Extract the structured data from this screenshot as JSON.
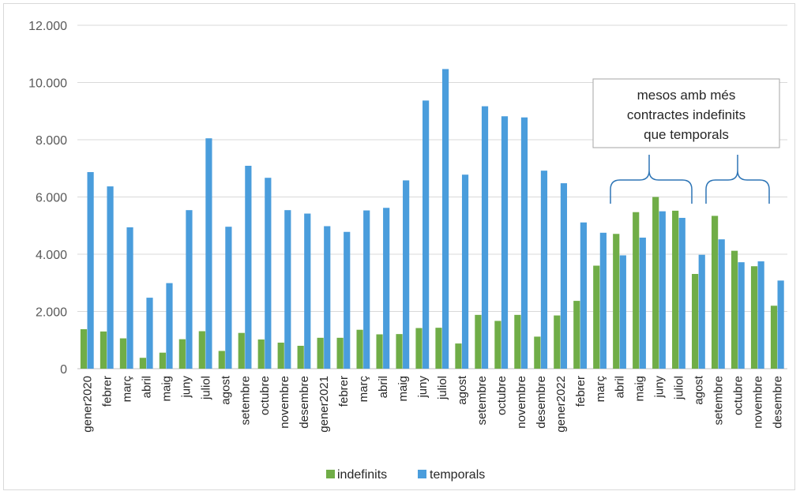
{
  "chart_data": {
    "type": "bar",
    "title": "",
    "xlabel": "",
    "ylabel": "",
    "ylim": [
      0,
      12000
    ],
    "yticks": [
      "0",
      "2.000",
      "4.000",
      "6.000",
      "8.000",
      "10.000",
      "12.000"
    ],
    "grid": true,
    "legend_position": "bottom",
    "categories": [
      "gener2020",
      "febrer",
      "març",
      "abril",
      "maig",
      "juny",
      "juliol",
      "agost",
      "setembre",
      "octubre",
      "novembre",
      "desembre",
      "gener2021",
      "febrer",
      "març",
      "abril",
      "maig",
      "juny",
      "juliol",
      "agost",
      "setembre",
      "octubre",
      "novembre",
      "desembre",
      "gener2022",
      "febrer",
      "març",
      "abril",
      "maig",
      "juny",
      "juliol",
      "agost",
      "setembre",
      "octubre",
      "novembre",
      "desembre"
    ],
    "series": [
      {
        "name": "indefinits",
        "color": "#70ad47",
        "values": [
          1380,
          1300,
          1060,
          380,
          560,
          1030,
          1310,
          620,
          1250,
          1020,
          910,
          800,
          1080,
          1080,
          1360,
          1200,
          1210,
          1420,
          1430,
          880,
          1880,
          1670,
          1880,
          1120,
          1860,
          2370,
          3600,
          4710,
          5470,
          6000,
          5520,
          3310,
          5340,
          4120,
          3580,
          2200
        ]
      },
      {
        "name": "temporals",
        "color": "#4a9ddc",
        "values": [
          6870,
          6370,
          4940,
          2480,
          2990,
          5540,
          8050,
          4960,
          7090,
          6670,
          5540,
          5420,
          4980,
          4780,
          5530,
          5620,
          6580,
          9370,
          10470,
          6780,
          9170,
          8820,
          8780,
          6920,
          6480,
          5110,
          4750,
          3960,
          4580,
          5500,
          5270,
          3980,
          4520,
          3720,
          3750,
          3080
        ]
      }
    ],
    "annotation": {
      "text_lines": [
        "mesos amb més",
        "contractes indefinits",
        "que temporals"
      ],
      "border_color": "#a6a6a6",
      "brace_color": "#2e75b6",
      "bracket_ranges": [
        [
          "març",
          "juliol"
        ],
        [
          "agost",
          "novembre"
        ]
      ]
    }
  }
}
